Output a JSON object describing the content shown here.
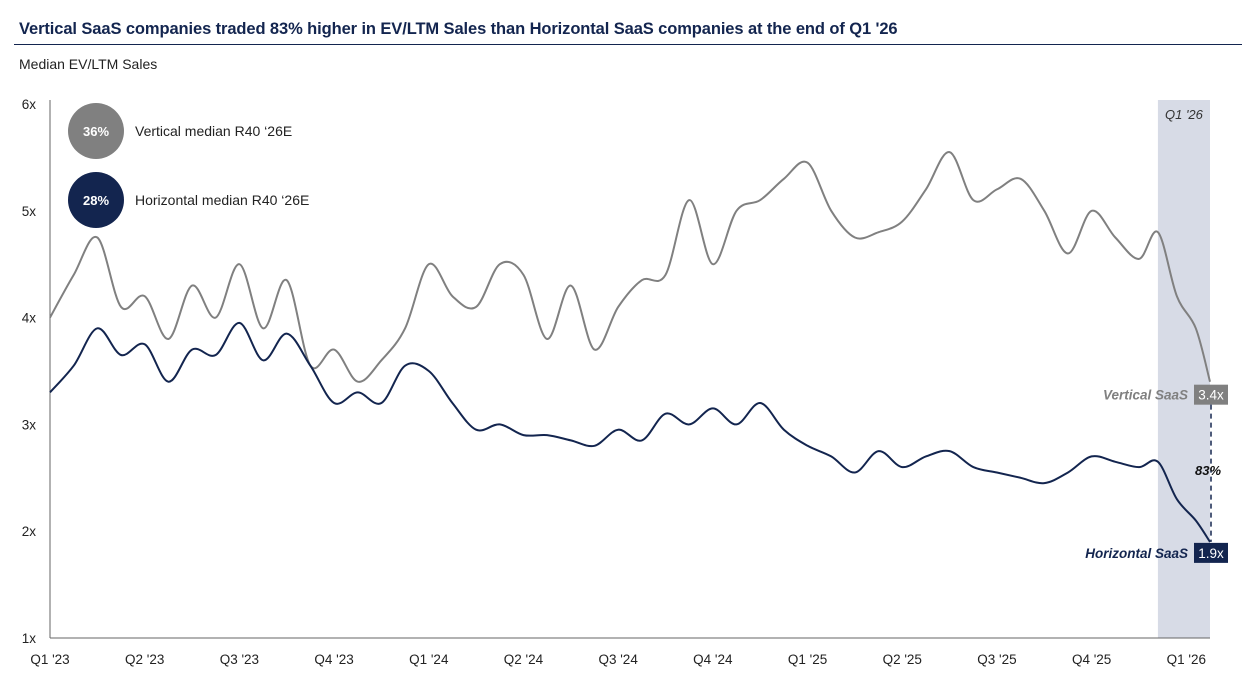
{
  "title": "Vertical SaaS companies traded 83% higher in EV/LTM Sales than Horizontal SaaS companies at the end of Q1 '26",
  "chart_data": {
    "type": "line",
    "ylabel": "Median EV/LTM Sales",
    "ylim": [
      1,
      6
    ],
    "y_ticks": [
      "1x",
      "2x",
      "3x",
      "4x",
      "5x",
      "6x"
    ],
    "x_ticks": [
      "Q1 '23",
      "Q2 '23",
      "Q3 '23",
      "Q4 '23",
      "Q1 '24",
      "Q2 '24",
      "Q3 '24",
      "Q4 '24",
      "Q1 '25",
      "Q2 '25",
      "Q3 '25",
      "Q4 '25",
      "Q1 '26"
    ],
    "highlight": {
      "label": "Q1 '26",
      "from": 11.7,
      "to": 12.25,
      "color": "#d7dbe6"
    },
    "x": [
      0,
      0.25,
      0.5,
      0.75,
      1,
      1.25,
      1.5,
      1.75,
      2,
      2.25,
      2.5,
      2.75,
      3,
      3.25,
      3.5,
      3.75,
      4,
      4.25,
      4.5,
      4.75,
      5,
      5.25,
      5.5,
      5.75,
      6,
      6.25,
      6.5,
      6.75,
      7,
      7.25,
      7.5,
      7.75,
      8,
      8.25,
      8.5,
      8.75,
      9,
      9.25,
      9.5,
      9.75,
      10,
      10.25,
      10.5,
      10.75,
      11,
      11.25,
      11.5,
      11.7,
      11.9,
      12.1,
      12.25
    ],
    "series": [
      {
        "name": "Vertical SaaS",
        "color": "#808080",
        "end_label": "3.4x",
        "values": [
          4.0,
          4.4,
          4.75,
          4.1,
          4.2,
          3.8,
          4.3,
          4.0,
          4.5,
          3.9,
          4.35,
          3.55,
          3.7,
          3.4,
          3.6,
          3.9,
          4.5,
          4.2,
          4.1,
          4.5,
          4.4,
          3.8,
          4.3,
          3.7,
          4.1,
          4.35,
          4.4,
          5.1,
          4.5,
          5.0,
          5.1,
          5.3,
          5.45,
          5.0,
          4.75,
          4.8,
          4.9,
          5.2,
          5.55,
          5.1,
          5.2,
          5.3,
          5.0,
          4.6,
          5.0,
          4.75,
          4.55,
          4.8,
          4.2,
          3.9,
          3.4
        ]
      },
      {
        "name": "Horizontal SaaS",
        "color": "#13254f",
        "end_label": "1.9x",
        "values": [
          3.3,
          3.55,
          3.9,
          3.65,
          3.75,
          3.4,
          3.7,
          3.65,
          3.95,
          3.6,
          3.85,
          3.55,
          3.2,
          3.3,
          3.2,
          3.55,
          3.5,
          3.2,
          2.95,
          3.0,
          2.9,
          2.9,
          2.85,
          2.8,
          2.95,
          2.85,
          3.1,
          3.0,
          3.15,
          3.0,
          3.2,
          2.95,
          2.8,
          2.7,
          2.55,
          2.75,
          2.6,
          2.7,
          2.75,
          2.6,
          2.55,
          2.5,
          2.45,
          2.55,
          2.7,
          2.65,
          2.6,
          2.65,
          2.3,
          2.1,
          1.9
        ]
      }
    ],
    "legend": [
      {
        "badge": "36%",
        "label": "Vertical median R40 ‘26E",
        "color": "#808080"
      },
      {
        "badge": "28%",
        "label": "Horizontal median R40 ‘26E",
        "color": "#13254f"
      }
    ],
    "annotation": {
      "text": "83%"
    }
  }
}
